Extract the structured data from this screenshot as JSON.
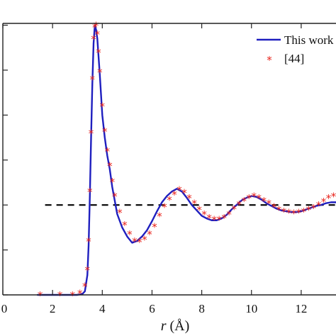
{
  "chart_data": {
    "type": "line",
    "xlabel_italic": "r",
    "xlabel_unit": " (Å)",
    "xlim": [
      0,
      13.4
    ],
    "ylim": [
      0,
      3.02
    ],
    "xticks": [
      0,
      2,
      4,
      6,
      8,
      10,
      12
    ],
    "xtick_labels": [
      "0",
      "2",
      "4",
      "6",
      "8",
      "10",
      "12"
    ],
    "yticks": [
      0,
      0.5,
      1.0,
      1.5,
      2.0,
      2.5,
      3.0
    ],
    "grid": false,
    "legend_position": "top-right",
    "reference_line": {
      "y": 1.0,
      "x_start": 1.7,
      "x_end": 13.4,
      "style": "dashed",
      "color": "#000000"
    },
    "series": [
      {
        "name": "This work",
        "style": "line",
        "color": "#1f1fbf",
        "x": [
          1.4,
          2.5,
          3.0,
          3.2,
          3.3,
          3.4,
          3.45,
          3.5,
          3.55,
          3.6,
          3.65,
          3.7,
          3.75,
          3.8,
          3.85,
          3.9,
          4.0,
          4.1,
          4.2,
          4.3,
          4.4,
          4.5,
          4.6,
          4.8,
          5.0,
          5.2,
          5.4,
          5.6,
          5.8,
          6.0,
          6.2,
          6.4,
          6.6,
          6.8,
          7.0,
          7.2,
          7.4,
          7.6,
          7.8,
          8.0,
          8.2,
          8.4,
          8.6,
          8.8,
          9.0,
          9.2,
          9.4,
          9.6,
          9.8,
          10.0,
          10.2,
          10.4,
          10.6,
          10.8,
          11.0,
          11.2,
          11.4,
          11.6,
          11.8,
          12.0,
          12.2,
          12.4,
          12.6,
          12.8,
          13.0,
          13.2,
          13.4
        ],
        "y": [
          0.0,
          0.0,
          0.0,
          0.01,
          0.04,
          0.22,
          0.55,
          1.1,
          1.75,
          2.35,
          2.8,
          3.0,
          2.95,
          2.85,
          2.65,
          2.45,
          2.0,
          1.75,
          1.55,
          1.4,
          1.2,
          1.05,
          0.9,
          0.75,
          0.65,
          0.58,
          0.6,
          0.65,
          0.72,
          0.82,
          0.93,
          1.03,
          1.1,
          1.15,
          1.18,
          1.15,
          1.08,
          1.0,
          0.94,
          0.88,
          0.85,
          0.83,
          0.83,
          0.85,
          0.89,
          0.95,
          1.0,
          1.05,
          1.08,
          1.1,
          1.09,
          1.06,
          1.02,
          0.99,
          0.96,
          0.94,
          0.93,
          0.92,
          0.92,
          0.93,
          0.95,
          0.97,
          0.99,
          1.0,
          1.02,
          1.03,
          1.03
        ]
      },
      {
        "name": "[44]",
        "style": "marker",
        "marker": "*",
        "color": "#e8231b",
        "x": [
          1.5,
          2.3,
          2.8,
          3.1,
          3.3,
          3.4,
          3.45,
          3.5,
          3.55,
          3.6,
          3.65,
          3.7,
          3.75,
          3.8,
          3.85,
          3.9,
          4.0,
          4.1,
          4.2,
          4.3,
          4.4,
          4.5,
          4.7,
          4.9,
          5.1,
          5.3,
          5.5,
          5.7,
          5.9,
          6.1,
          6.3,
          6.5,
          6.7,
          6.9,
          7.1,
          7.3,
          7.5,
          7.7,
          7.9,
          8.1,
          8.3,
          8.5,
          8.7,
          8.9,
          9.1,
          9.3,
          9.5,
          9.7,
          9.9,
          10.1,
          10.3,
          10.5,
          10.7,
          10.9,
          11.1,
          11.3,
          11.5,
          11.7,
          11.9,
          12.1,
          12.3,
          12.5,
          12.7,
          12.9,
          13.1,
          13.3
        ],
        "y": [
          0.0,
          0.0,
          0.0,
          0.02,
          0.1,
          0.28,
          0.6,
          1.15,
          1.8,
          2.4,
          2.85,
          2.98,
          3.0,
          2.9,
          2.7,
          2.48,
          2.1,
          1.82,
          1.6,
          1.44,
          1.26,
          1.1,
          0.92,
          0.78,
          0.68,
          0.6,
          0.59,
          0.62,
          0.68,
          0.76,
          0.88,
          0.98,
          1.06,
          1.12,
          1.17,
          1.14,
          1.08,
          1.02,
          0.95,
          0.9,
          0.86,
          0.84,
          0.84,
          0.86,
          0.9,
          0.96,
          1.01,
          1.05,
          1.08,
          1.1,
          1.08,
          1.05,
          1.02,
          0.98,
          0.95,
          0.93,
          0.92,
          0.91,
          0.92,
          0.93,
          0.95,
          0.97,
          1.0,
          1.04,
          1.08,
          1.1
        ]
      }
    ]
  }
}
